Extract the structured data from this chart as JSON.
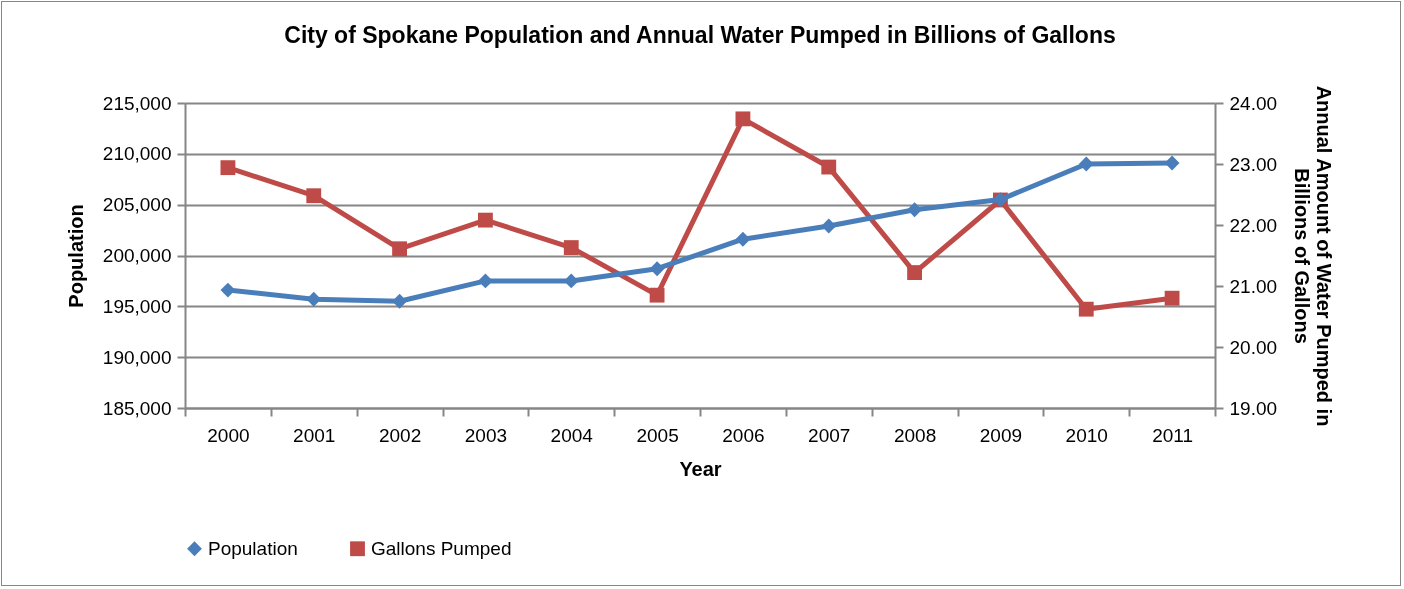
{
  "chart_data": {
    "type": "line",
    "title": "City of Spokane Population and Annual Water Pumped in Billions of Gallons",
    "xlabel": "Year",
    "ylabel": "Population",
    "y2label": "Annual Amount of Water Pumped in Billions of Gallons",
    "categories": [
      "2000",
      "2001",
      "2002",
      "2003",
      "2004",
      "2005",
      "2006",
      "2007",
      "2008",
      "2009",
      "2010",
      "2011"
    ],
    "series": [
      {
        "name": "Population",
        "color": "#4a7ebb",
        "marker": "diamond",
        "values": [
          196600,
          195700,
          195500,
          197500,
          197500,
          198700,
          201600,
          202900,
          204500,
          205500,
          209000,
          209100
        ]
      },
      {
        "name": "Gallons Pumped",
        "color": "#be4b48",
        "marker": "square",
        "axis": "y2",
        "values": [
          22.94,
          22.48,
          21.61,
          22.08,
          21.63,
          20.85,
          23.74,
          22.95,
          21.22,
          22.41,
          20.62,
          20.8
        ]
      }
    ],
    "ylim": [
      185000,
      215000
    ],
    "yticks": [
      {
        "value": 185000,
        "label": "185,000"
      },
      {
        "value": 190000,
        "label": "190,000"
      },
      {
        "value": 195000,
        "label": "195,000"
      },
      {
        "value": 200000,
        "label": "200,000"
      },
      {
        "value": 205000,
        "label": "205,000"
      },
      {
        "value": 210000,
        "label": "210,000"
      },
      {
        "value": 215000,
        "label": "215,000"
      }
    ],
    "y2lim": [
      19,
      24
    ],
    "y2ticks": [
      {
        "value": 19,
        "label": "19.00"
      },
      {
        "value": 20,
        "label": "20.00"
      },
      {
        "value": 21,
        "label": "21.00"
      },
      {
        "value": 22,
        "label": "22.00"
      },
      {
        "value": 23,
        "label": "23.00"
      },
      {
        "value": 24,
        "label": "24.00"
      }
    ],
    "grid": "y",
    "legend": "bottom",
    "line_style": "solid"
  }
}
